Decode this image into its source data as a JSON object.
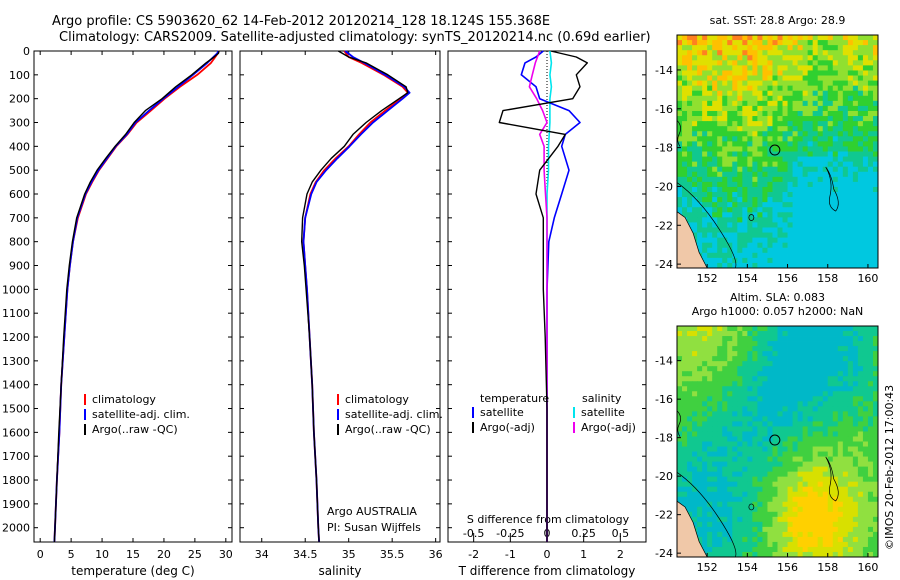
{
  "titles": {
    "line1": "Argo profile: CS 5903620_62 14-Feb-2012 20120214_128 18.124S 155.368E",
    "line2": "Climatology: CARS2009. Satellite-adjusted climatology: synTS_20120214.nc (0.69d earlier)"
  },
  "depth_ticks": [
    "0",
    "100",
    "200",
    "300",
    "400",
    "500",
    "600",
    "700",
    "800",
    "900",
    "1000",
    "1100",
    "1200",
    "1300",
    "1400",
    "1500",
    "1600",
    "1700",
    "1800",
    "1900",
    "2000"
  ],
  "colors": {
    "climatology": "#ff0000",
    "satellite": "#0000ff",
    "argo": "#000000",
    "sat_s": "#00e5ee",
    "argo_s": "#ee00ee"
  },
  "temperature_panel": {
    "xlabel": "temperature (deg C)",
    "xticks": [
      "0",
      "5",
      "10",
      "15",
      "20",
      "25",
      "30"
    ],
    "legend": [
      "climatology",
      "satellite-adj. clim.",
      "Argo(..raw -QC)"
    ]
  },
  "salinity_panel": {
    "xlabel": "salinity",
    "xticks": [
      "34",
      "34.5",
      "35",
      "35.5",
      "36"
    ],
    "legend": [
      "climatology",
      "satellite-adj. clim.",
      "Argo(..raw -QC)"
    ],
    "note1": "Argo AUSTRALIA",
    "note2": "PI: Susan Wijffels"
  },
  "difference_panel": {
    "legend_head_t": "temperature",
    "legend_head_s": "salinity",
    "legend_t": [
      "satellite",
      "Argo(-adj)"
    ],
    "legend_s": [
      "satellite",
      "Argo(-adj)"
    ],
    "s_title": "S difference from climatology",
    "s_ticks": [
      "-0.5",
      "-0.25",
      "0",
      "0.25",
      "0.5"
    ],
    "t_ticks": [
      "-2",
      "-1",
      "0",
      "1",
      "2"
    ],
    "xlabel": "T difference from climatology"
  },
  "maps": {
    "sst_title": "sat. SST: 28.8 Argo: 28.9",
    "sla_title1": "Altim. SLA: 0.083",
    "sla_title2": "Argo h1000: 0.057 h2000: NaN",
    "lat_ticks": [
      "-14",
      "-16",
      "-18",
      "-20",
      "-22",
      "-24"
    ],
    "lon_ticks": [
      "152",
      "154",
      "156",
      "158",
      "160"
    ]
  },
  "stamp": "©IMOS 20-Feb-2012 17:00:43",
  "chart_data": [
    {
      "type": "line",
      "title": "temperature",
      "xlabel": "temperature (deg C)",
      "ylabel": "depth",
      "xlim": [
        -1,
        31
      ],
      "ylim": [
        2060,
        0
      ],
      "series": [
        {
          "name": "climatology",
          "depth": [
            0,
            10,
            25,
            50,
            100,
            150,
            200,
            250,
            300,
            350,
            400,
            450,
            500,
            550,
            600,
            700,
            800,
            900,
            1000,
            1200,
            1400,
            1600,
            1800,
            2000,
            2060
          ],
          "values": [
            28.9,
            28.7,
            28.3,
            27.6,
            25.4,
            22.6,
            20.1,
            17.9,
            15.6,
            14.1,
            12.3,
            10.9,
            9.5,
            8.4,
            7.4,
            6.1,
            5.3,
            4.8,
            4.4,
            3.9,
            3.4,
            3.1,
            2.7,
            2.4,
            2.3
          ]
        },
        {
          "name": "satellite-adj. clim.",
          "depth": [
            0,
            10,
            25,
            50,
            100,
            150,
            200,
            250,
            300,
            350,
            400,
            450,
            500,
            550,
            600,
            700,
            800,
            900,
            1000,
            1200,
            1400,
            1600,
            1800,
            2000,
            2060
          ],
          "values": [
            28.8,
            28.6,
            28.0,
            27.0,
            24.7,
            22.3,
            19.9,
            17.6,
            15.4,
            14.0,
            12.2,
            10.8,
            9.4,
            8.3,
            7.3,
            6.0,
            5.3,
            4.8,
            4.4,
            3.9,
            3.4,
            3.1,
            2.7,
            2.4,
            2.3
          ]
        },
        {
          "name": "Argo(..raw -QC)",
          "depth": [
            0,
            10,
            25,
            50,
            100,
            150,
            200,
            250,
            300,
            350,
            400,
            450,
            500,
            550,
            600,
            700,
            800,
            900,
            1000,
            1200,
            1400,
            1600,
            1800,
            2000,
            2060
          ],
          "values": [
            28.9,
            28.8,
            28.1,
            26.8,
            24.5,
            21.9,
            19.7,
            17.0,
            15.2,
            13.8,
            12.1,
            10.6,
            9.2,
            8.1,
            7.2,
            5.9,
            5.2,
            4.7,
            4.3,
            3.8,
            3.4,
            3.0,
            2.7,
            2.4,
            2.3
          ]
        }
      ]
    },
    {
      "type": "line",
      "title": "salinity",
      "xlabel": "salinity",
      "ylabel": "depth",
      "xlim": [
        33.75,
        36.05
      ],
      "ylim": [
        2060,
        0
      ],
      "series": [
        {
          "name": "climatology",
          "depth": [
            0,
            25,
            50,
            100,
            150,
            175,
            200,
            250,
            300,
            350,
            400,
            450,
            500,
            550,
            600,
            700,
            800,
            900,
            1000,
            1200,
            1400,
            1600,
            1800,
            2000,
            2060
          ],
          "values": [
            34.95,
            35.0,
            35.15,
            35.4,
            35.62,
            35.68,
            35.6,
            35.42,
            35.25,
            35.12,
            35.0,
            34.85,
            34.72,
            34.62,
            34.56,
            34.5,
            34.48,
            34.5,
            34.52,
            34.55,
            34.58,
            34.6,
            34.63,
            34.65,
            34.66
          ]
        },
        {
          "name": "satellite-adj. clim.",
          "depth": [
            0,
            25,
            50,
            100,
            150,
            175,
            200,
            250,
            300,
            350,
            400,
            450,
            500,
            550,
            600,
            700,
            800,
            900,
            1000,
            1200,
            1400,
            1600,
            1800,
            2000,
            2060
          ],
          "values": [
            34.96,
            35.05,
            35.18,
            35.42,
            35.64,
            35.7,
            35.62,
            35.45,
            35.28,
            35.14,
            35.01,
            34.87,
            34.74,
            34.63,
            34.57,
            34.5,
            34.48,
            34.5,
            34.52,
            34.55,
            34.58,
            34.6,
            34.63,
            34.65,
            34.66
          ]
        },
        {
          "name": "Argo(..raw -QC)",
          "depth": [
            0,
            25,
            50,
            100,
            150,
            175,
            200,
            250,
            300,
            350,
            400,
            450,
            500,
            550,
            600,
            700,
            800,
            900,
            1000,
            1200,
            1400,
            1600,
            1800,
            2000,
            2060
          ],
          "values": [
            34.88,
            35.0,
            35.2,
            35.45,
            35.66,
            35.68,
            35.58,
            35.38,
            35.2,
            35.05,
            34.95,
            34.8,
            34.68,
            34.58,
            34.52,
            34.47,
            34.46,
            34.49,
            34.51,
            34.55,
            34.58,
            34.6,
            34.63,
            34.65,
            34.66
          ]
        }
      ]
    },
    {
      "type": "line",
      "title": "difference from climatology",
      "xlabel": "T difference from climatology",
      "x2label": "S difference from climatology",
      "ylabel": "depth",
      "xlim": [
        -2.7,
        2.7
      ],
      "x2lim": [
        -0.675,
        0.675
      ],
      "ylim": [
        2060,
        0
      ],
      "series": [
        {
          "name": "temperature satellite",
          "axis": "T",
          "depth": [
            0,
            25,
            50,
            100,
            150,
            200,
            250,
            300,
            350,
            400,
            500,
            600,
            700,
            800,
            1000,
            1200,
            1500,
            2000,
            2060
          ],
          "values": [
            -0.1,
            -0.3,
            -0.6,
            -0.7,
            -0.3,
            -0.2,
            0.6,
            0.9,
            0.5,
            0.4,
            0.6,
            0.4,
            0.2,
            0.05,
            0,
            0,
            0,
            0,
            0
          ]
        },
        {
          "name": "temperature Argo(-adj)",
          "axis": "T",
          "depth": [
            0,
            25,
            50,
            100,
            150,
            200,
            250,
            300,
            350,
            400,
            500,
            600,
            700,
            800,
            1000,
            1200,
            1500,
            2000,
            2060
          ],
          "values": [
            0.1,
            0.8,
            1.1,
            0.8,
            0.9,
            0.7,
            -1.2,
            -1.3,
            0.5,
            0.3,
            -0.2,
            -0.3,
            -0.1,
            -0.1,
            -0.1,
            -0.05,
            0,
            0,
            0
          ]
        },
        {
          "name": "salinity satellite",
          "axis": "S",
          "depth": [
            0,
            50,
            100,
            150,
            200,
            300,
            400,
            500,
            600,
            800,
            1000,
            1500,
            2000,
            2060
          ],
          "values": [
            0.02,
            0.03,
            0.02,
            0.03,
            0.02,
            0.02,
            0.01,
            0.01,
            0,
            0,
            0,
            0,
            0,
            0
          ]
        },
        {
          "name": "salinity Argo(-adj)",
          "axis": "S",
          "depth": [
            0,
            50,
            100,
            150,
            200,
            250,
            300,
            350,
            400,
            500,
            600,
            700,
            800,
            1000,
            1500,
            2000,
            2060
          ],
          "values": [
            -0.05,
            -0.08,
            -0.1,
            -0.12,
            -0.07,
            -0.03,
            0,
            -0.05,
            -0.02,
            -0.02,
            -0.01,
            0,
            0,
            0,
            0,
            0,
            0
          ]
        }
      ]
    },
    {
      "type": "heatmap",
      "title": "sat. SST: 28.8 Argo: 28.9",
      "xlim": [
        150.5,
        160.5
      ],
      "ylim": [
        -24.2,
        -12.2
      ],
      "argo_position": [
        155.368,
        -18.124
      ]
    },
    {
      "type": "heatmap",
      "title": "Altim. SLA: 0.083 / Argo h1000: 0.057 h2000: NaN",
      "xlim": [
        150.5,
        160.5
      ],
      "ylim": [
        -24.2,
        -12.2
      ],
      "argo_position": [
        155.368,
        -18.124
      ]
    }
  ]
}
